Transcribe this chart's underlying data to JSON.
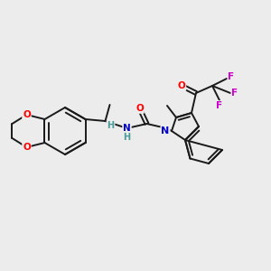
{
  "background_color": "#ececec",
  "bond_color": "#1a1a1a",
  "atom_colors": {
    "O": "#ff0000",
    "N": "#0000cc",
    "F": "#cc00cc",
    "H_label": "#4a9a9a"
  },
  "figsize": [
    3.0,
    3.0
  ],
  "dpi": 100
}
